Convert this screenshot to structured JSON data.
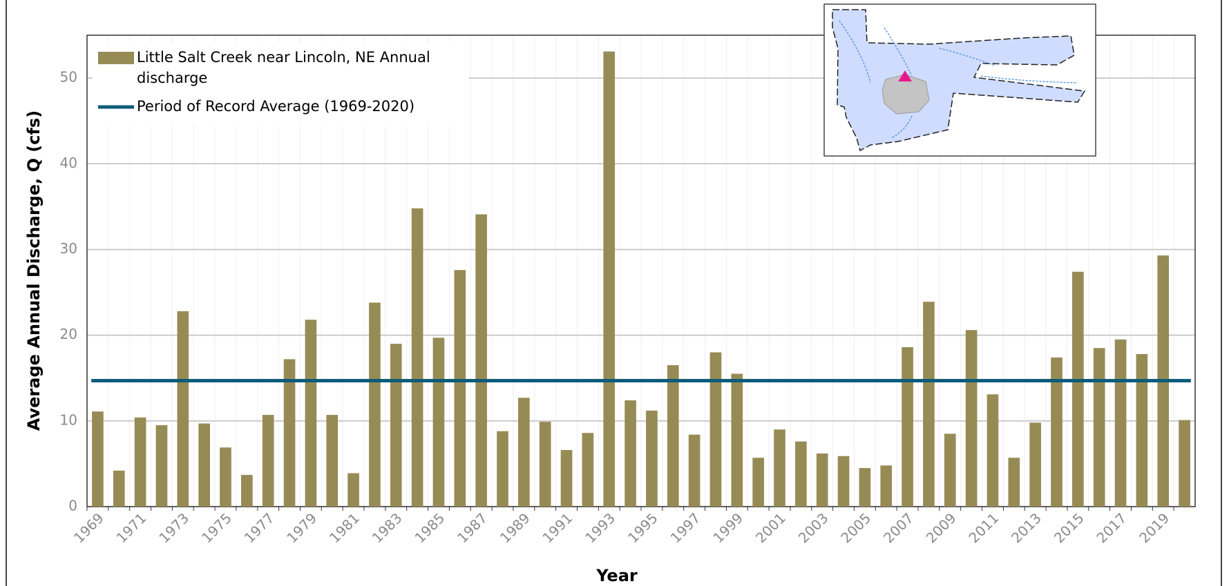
{
  "chart_data": {
    "type": "bar",
    "xlabel": "Year",
    "ylabel": "Average Annual Discharge, Q (cfs)",
    "categories": [
      "1969",
      null,
      "1971",
      null,
      "1973",
      null,
      "1975",
      null,
      "1977",
      null,
      "1979",
      null,
      "1981",
      null,
      "1983",
      null,
      "1985",
      null,
      "1987",
      null,
      "1989",
      null,
      "1991",
      null,
      "1993",
      null,
      "1995",
      null,
      "1997",
      null,
      "1999",
      null,
      "2001",
      null,
      "2003",
      null,
      "2005",
      null,
      "2007",
      null,
      "2009",
      null,
      "2011",
      null,
      "2013",
      null,
      "2015",
      null,
      "2017",
      null,
      "2019",
      null
    ],
    "series": [
      {
        "name": "Little Salt Creek near Lincoln, NE Annual discharge",
        "color": "#978b55",
        "values": [
          11.1,
          4.2,
          10.4,
          9.5,
          22.8,
          9.7,
          6.9,
          3.7,
          10.7,
          17.2,
          21.8,
          10.7,
          3.9,
          23.8,
          19.0,
          34.8,
          19.7,
          27.6,
          34.1,
          8.8,
          12.7,
          9.9,
          6.6,
          8.6,
          53.1,
          12.4,
          11.2,
          16.5,
          8.4,
          18.0,
          15.5,
          5.7,
          9.0,
          7.6,
          6.2,
          5.9,
          4.5,
          4.8,
          18.6,
          23.9,
          8.5,
          20.6,
          13.1,
          5.7,
          9.8,
          17.4,
          27.4,
          18.5,
          19.5,
          17.8,
          29.3,
          10.1
        ]
      }
    ],
    "reference_line": {
      "name": "Period of Record Average (1969-2020)",
      "value": 14.7,
      "color": "#0d5b7a"
    },
    "ylim": [
      0,
      55
    ],
    "yticks": [
      0,
      10,
      20,
      30,
      40,
      50
    ],
    "grid": true,
    "legend": "upper left"
  }
}
